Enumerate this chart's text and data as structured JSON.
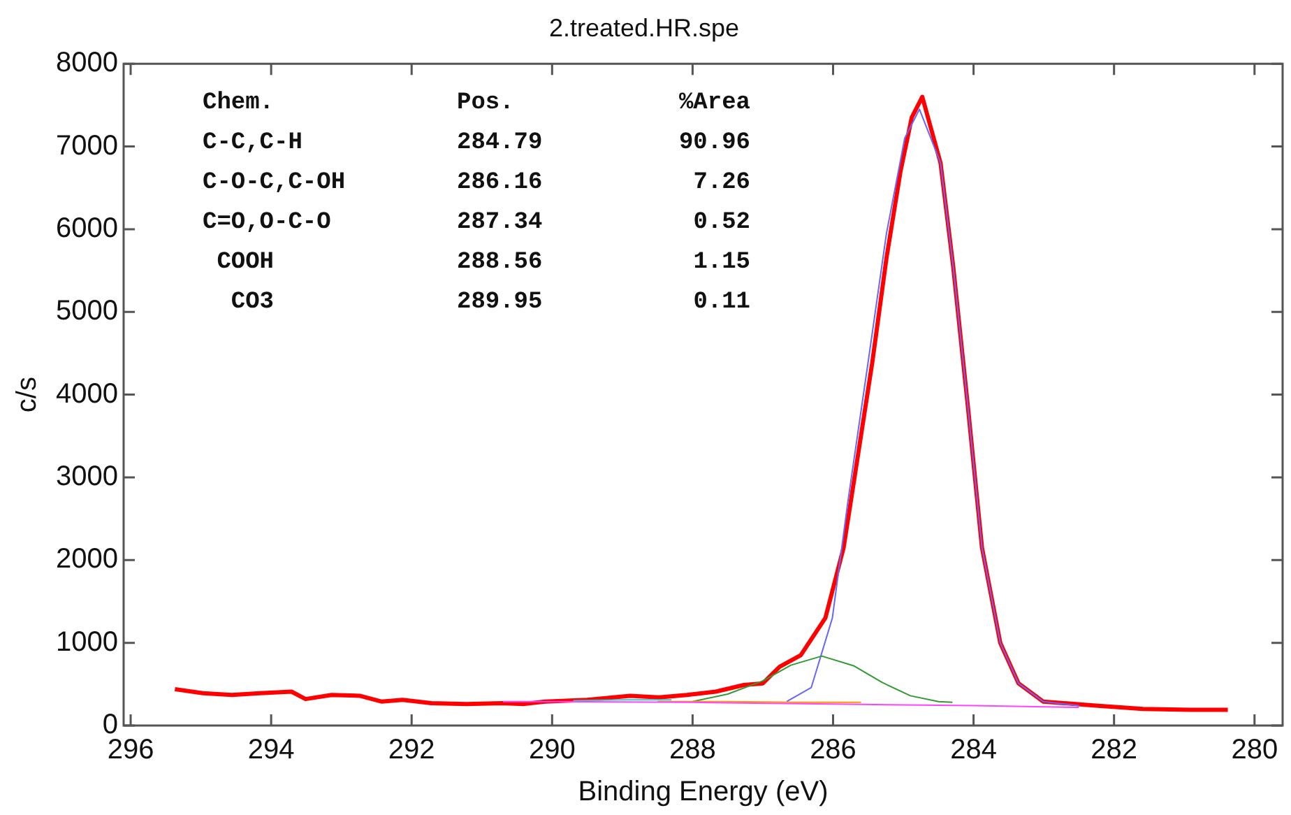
{
  "chart_data": {
    "type": "line",
    "title": "2.treated.HR.spe",
    "xlabel": "Binding Energy (eV)",
    "ylabel": "c/s",
    "xlim": [
      296.1,
      279.6
    ],
    "xticks": [
      296,
      294,
      292,
      290,
      288,
      286,
      284,
      282,
      280
    ],
    "ylim": [
      0,
      8000
    ],
    "yticks": [
      0,
      1000,
      2000,
      3000,
      4000,
      5000,
      6000,
      7000,
      8000
    ],
    "grid": false,
    "legend": false,
    "marker": "none",
    "line_style": "solid",
    "annotations": [
      "Chem.",
      "Pos.",
      "%Area",
      "C-C,C-H",
      "284.79",
      "90.96",
      "C-O-C,C-OH",
      "286.16",
      "7.26",
      "C=O,O-C-O",
      "287.34",
      "0.52",
      " COOH",
      "288.56",
      "1.15",
      "  CO3",
      "289.95",
      "0.11"
    ],
    "series": [
      {
        "color": "#ff0000",
        "x": [
          295.37,
          294.97,
          294.56,
          294.16,
          293.71,
          293.51,
          293.14,
          292.74,
          292.43,
          292.13,
          291.72,
          291.22,
          290.71,
          290.41,
          290.1,
          289.5,
          288.89,
          288.48,
          288.08,
          287.67,
          287.27,
          287.0,
          286.76,
          286.46,
          286.11,
          285.85,
          285.64,
          285.44,
          285.24,
          285.04,
          284.88,
          284.73,
          284.47,
          284.29,
          284.08,
          283.88,
          283.62,
          283.36,
          283.01,
          282.26,
          281.59,
          280.92,
          280.38
        ],
        "values": [
          440,
          390,
          370,
          390,
          410,
          320,
          370,
          360,
          290,
          310,
          270,
          260,
          270,
          260,
          290,
          310,
          360,
          340,
          370,
          410,
          490,
          510,
          710,
          850,
          1300,
          2150,
          3300,
          4400,
          5650,
          6700,
          7350,
          7600,
          6800,
          5550,
          3850,
          2150,
          1000,
          510,
          290,
          240,
          200,
          190,
          190
        ]
      },
      {
        "color": "#6666ff",
        "x": [
          286.66,
          286.31,
          286.01,
          285.79,
          285.5,
          285.24,
          284.98,
          284.77,
          284.47,
          284.29,
          284.08,
          283.88,
          283.62,
          283.36,
          283.01,
          282.5
        ],
        "values": [
          290,
          460,
          1300,
          2700,
          4400,
          5950,
          7100,
          7450,
          6800,
          5550,
          3850,
          2150,
          1000,
          510,
          290,
          240
        ]
      },
      {
        "color": "#339933",
        "x": [
          288.0,
          287.5,
          287.0,
          286.6,
          286.16,
          285.7,
          285.3,
          284.9,
          284.5,
          284.3
        ],
        "values": [
          290,
          380,
          540,
          730,
          840,
          720,
          520,
          360,
          290,
          280
        ]
      },
      {
        "color": "#ff9900",
        "x": [
          288.5,
          287.5,
          286.5,
          285.6
        ],
        "values": [
          290,
          290,
          280,
          280
        ]
      },
      {
        "color": "#33cccc",
        "x": [
          289.7,
          289.0,
          288.3
        ],
        "values": [
          300,
          310,
          310
        ]
      },
      {
        "color": "#ff44ff",
        "x": [
          290.7,
          288.0,
          286.0,
          284.0,
          282.5
        ],
        "values": [
          290,
          280,
          260,
          240,
          220
        ]
      }
    ]
  }
}
